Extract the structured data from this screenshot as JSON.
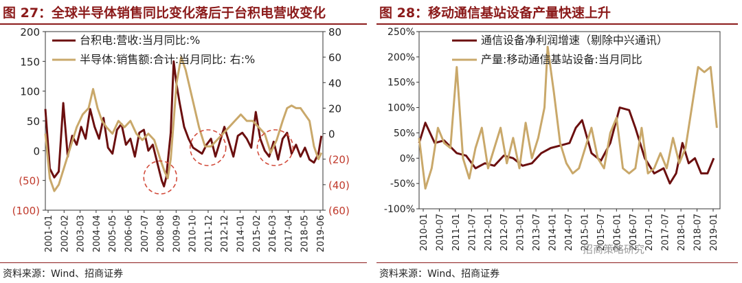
{
  "left_panel": {
    "title": "图 27：全球半导体销售同比变化落后于台积电营收变化",
    "source": "资料来源：Wind、招商证券"
  },
  "right_panel": {
    "title": "图 28：移动通信基站设备产量快速上升",
    "source": "资料来源：Wind、招商证券",
    "watermark": "招商策略研究"
  },
  "colors": {
    "dark_red": "#6b0f0f",
    "gold": "#c9a86a",
    "title_red": "#8b1a1a",
    "neg_red": "#c0392b",
    "circle": "#d24a3a"
  },
  "chart_data": [
    {
      "type": "line",
      "ylim_left": [
        -100,
        200
      ],
      "ylim_right": [
        -60,
        80
      ],
      "yticks_left": [
        "200",
        "150",
        "100",
        "50",
        "0",
        "(50)",
        "(100)"
      ],
      "yticks_right": [
        "80",
        "60",
        "40",
        "20",
        "0",
        "(20)",
        "(40)",
        "(60)"
      ],
      "x_tick_labels": [
        "2001-01",
        "2002-02",
        "2003-03",
        "2004-04",
        "2005-05",
        "2006-06",
        "2007-07",
        "2008-08",
        "2009-09",
        "2010-10",
        "2011-12",
        "2012-12",
        "2014-01",
        "2015-02",
        "2016-03",
        "2017-04",
        "2018-05",
        "2019-06"
      ],
      "legend_placement": "top-left",
      "series": [
        {
          "name": "台积电:营收:当月同比:%",
          "axis": "left",
          "color": "dark_red",
          "x": [
            2001.0,
            2001.3,
            2001.6,
            2001.9,
            2002.2,
            2002.5,
            2002.8,
            2003.1,
            2003.4,
            2003.7,
            2004.0,
            2004.3,
            2004.6,
            2004.9,
            2005.2,
            2005.5,
            2005.8,
            2006.1,
            2006.4,
            2006.7,
            2007.0,
            2007.3,
            2007.6,
            2007.9,
            2008.2,
            2008.5,
            2008.8,
            2008.95,
            2009.1,
            2009.4,
            2009.6,
            2009.8,
            2010.0,
            2010.3,
            2010.6,
            2010.9,
            2011.2,
            2011.5,
            2011.8,
            2012.1,
            2012.4,
            2012.7,
            2013.0,
            2013.3,
            2013.6,
            2013.9,
            2014.2,
            2014.5,
            2014.8,
            2015.1,
            2015.4,
            2015.7,
            2016.0,
            2016.3,
            2016.6,
            2016.9,
            2017.2,
            2017.5,
            2017.8,
            2018.1,
            2018.4,
            2018.7,
            2019.0,
            2019.3,
            2019.5
          ],
          "values": [
            70,
            -30,
            -45,
            -35,
            80,
            -10,
            25,
            10,
            40,
            20,
            70,
            40,
            20,
            55,
            5,
            -5,
            35,
            45,
            10,
            20,
            -10,
            30,
            35,
            0,
            10,
            -20,
            -50,
            -60,
            -45,
            30,
            150,
            110,
            80,
            40,
            20,
            5,
            0,
            -5,
            10,
            20,
            -10,
            15,
            40,
            15,
            -10,
            25,
            30,
            20,
            5,
            65,
            20,
            0,
            -10,
            15,
            -15,
            20,
            30,
            -5,
            10,
            -10,
            5,
            -15,
            -20,
            -5,
            25
          ]
        },
        {
          "name": "半导体:销售额:合计:当月同比:  右:%",
          "axis": "right",
          "color": "gold",
          "x": [
            2001.0,
            2001.3,
            2001.6,
            2001.9,
            2002.3,
            2002.7,
            2003.1,
            2003.5,
            2003.9,
            2004.2,
            2004.5,
            2004.8,
            2005.1,
            2005.5,
            2005.9,
            2006.3,
            2006.7,
            2007.1,
            2007.5,
            2007.9,
            2008.3,
            2008.7,
            2009.0,
            2009.2,
            2009.4,
            2009.6,
            2009.8,
            2010.1,
            2010.4,
            2010.7,
            2011.0,
            2011.3,
            2011.7,
            2012.1,
            2012.5,
            2012.9,
            2013.3,
            2013.7,
            2014.1,
            2014.5,
            2014.9,
            2015.3,
            2015.7,
            2016.1,
            2016.5,
            2016.9,
            2017.2,
            2017.5,
            2017.8,
            2018.1,
            2018.4,
            2018.7,
            2019.0,
            2019.3,
            2019.5
          ],
          "values": [
            0,
            -35,
            -45,
            -40,
            -25,
            -10,
            5,
            15,
            20,
            35,
            20,
            10,
            5,
            0,
            10,
            5,
            10,
            0,
            -5,
            0,
            -5,
            -20,
            -30,
            -35,
            -20,
            10,
            40,
            60,
            50,
            35,
            20,
            5,
            -10,
            -10,
            -5,
            0,
            5,
            10,
            15,
            10,
            10,
            5,
            0,
            -15,
            -5,
            10,
            20,
            22,
            20,
            20,
            15,
            10,
            -10,
            -20,
            -15
          ]
        }
      ],
      "annotations": [
        "circle-2008-low",
        "circle-2011-low",
        "circle-2016-low"
      ]
    },
    {
      "type": "line",
      "ylim": [
        -100,
        250
      ],
      "yticks": [
        "250%",
        "200%",
        "150%",
        "100%",
        "50%",
        "0%",
        "-50%",
        "-100%"
      ],
      "x_tick_labels": [
        "2010-01",
        "2010-07",
        "2011-01",
        "2011-07",
        "2012-01",
        "2012-07",
        "2013-01",
        "2013-07",
        "2014-01",
        "2014-07",
        "2015-01",
        "2015-07",
        "2016-01",
        "2016-07",
        "2017-01",
        "2017-07",
        "2018-01",
        "2018-07",
        "2019-01"
      ],
      "legend_placement": "top-left",
      "series": [
        {
          "name": "通信设备净利润增速（剔除中兴通讯）",
          "color": "dark_red",
          "x": [
            2010.0,
            2010.2,
            2010.5,
            2010.8,
            2011.2,
            2011.5,
            2011.8,
            2012.1,
            2012.4,
            2012.7,
            2013.0,
            2013.3,
            2013.6,
            2013.9,
            2014.2,
            2014.5,
            2014.8,
            2015.0,
            2015.2,
            2015.5,
            2015.8,
            2016.1,
            2016.4,
            2016.7,
            2016.9,
            2017.2,
            2017.5,
            2017.8,
            2018.0,
            2018.2,
            2018.4,
            2018.6,
            2018.8,
            2019.0,
            2019.2,
            2019.4
          ],
          "values": [
            30,
            70,
            30,
            35,
            10,
            5,
            -20,
            -10,
            -15,
            5,
            0,
            -15,
            -10,
            10,
            20,
            25,
            30,
            60,
            75,
            10,
            -5,
            30,
            100,
            95,
            60,
            0,
            -30,
            -20,
            -50,
            -30,
            30,
            -10,
            0,
            -30,
            -30,
            0
          ]
        },
        {
          "name": "产量:移动通信基站设备:当月同比",
          "color": "gold",
          "x": [
            2010.0,
            2010.2,
            2010.4,
            2010.6,
            2010.8,
            2011.0,
            2011.2,
            2011.4,
            2011.6,
            2011.8,
            2012.0,
            2012.2,
            2012.4,
            2012.6,
            2012.8,
            2013.0,
            2013.2,
            2013.4,
            2013.6,
            2013.8,
            2014.0,
            2014.1,
            2014.3,
            2014.5,
            2014.7,
            2014.9,
            2015.1,
            2015.3,
            2015.5,
            2015.7,
            2015.9,
            2016.1,
            2016.3,
            2016.5,
            2016.7,
            2016.9,
            2017.1,
            2017.3,
            2017.5,
            2017.7,
            2017.9,
            2018.1,
            2018.3,
            2018.5,
            2018.7,
            2018.9,
            2019.1,
            2019.3,
            2019.5
          ],
          "values": [
            40,
            -60,
            -20,
            60,
            30,
            20,
            180,
            0,
            -40,
            20,
            60,
            -20,
            20,
            60,
            -10,
            40,
            -20,
            70,
            0,
            40,
            100,
            220,
            130,
            30,
            -10,
            -30,
            -20,
            20,
            60,
            0,
            -20,
            50,
            80,
            -20,
            -30,
            -20,
            60,
            -30,
            -20,
            10,
            -20,
            40,
            -10,
            20,
            100,
            180,
            170,
            180,
            60
          ]
        }
      ]
    }
  ]
}
